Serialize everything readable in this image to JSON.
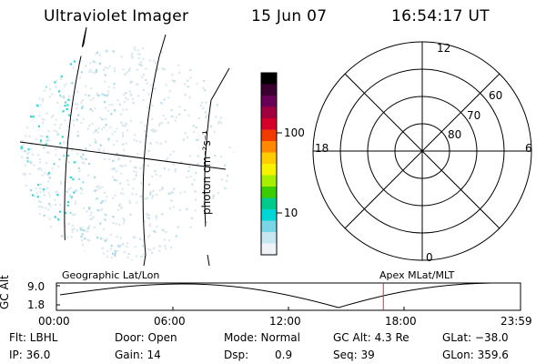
{
  "header": {
    "instrument": "Ultraviolet Imager",
    "date": "15 Jun 07",
    "time": "16:54:17 UT"
  },
  "colorbar": {
    "unit_label": "photon cm⁻²s⁻¹",
    "ticks": [
      "100",
      "10"
    ],
    "scale": "log",
    "colors": [
      "#000000",
      "#3a0030",
      "#6a0055",
      "#a00040",
      "#d4002a",
      "#f03a00",
      "#ff8800",
      "#ffcc00",
      "#f6f200",
      "#a8ee00",
      "#3ccd00",
      "#00c98c",
      "#00d6d6",
      "#7ad6e6",
      "#c6e6f2",
      "#f0f4f8"
    ]
  },
  "polar_plot": {
    "mlt_labels": {
      "top": "12",
      "left": "18",
      "right": "6",
      "bottom": "0"
    },
    "lat_labels": [
      "60",
      "70",
      "80"
    ]
  },
  "altitude_plot": {
    "axis_label": "GC Alt",
    "y_ticks": [
      "9.0",
      "1.8"
    ],
    "x_ticks": [
      "00:00",
      "06:00",
      "12:00",
      "18:00",
      "23:59"
    ],
    "left_title": "Geographic Lat/Lon",
    "right_title": "Apex MLat/MLT",
    "marker_time_hours": 16.905,
    "marker_color": "#cc3030"
  },
  "status": {
    "flt": "Flt: LBHL",
    "ip": "IP: 36.0",
    "door": "Door: Open",
    "gain": "Gain: 14",
    "mode": "Mode: Normal",
    "dsp_label": "Dsp:",
    "dsp_value": "0.9",
    "gc_alt": "GC Alt: 4.3 Re",
    "seq": "Seq: 39",
    "glat": "GLat: −38.0",
    "glon": "GLon: 359.6"
  }
}
